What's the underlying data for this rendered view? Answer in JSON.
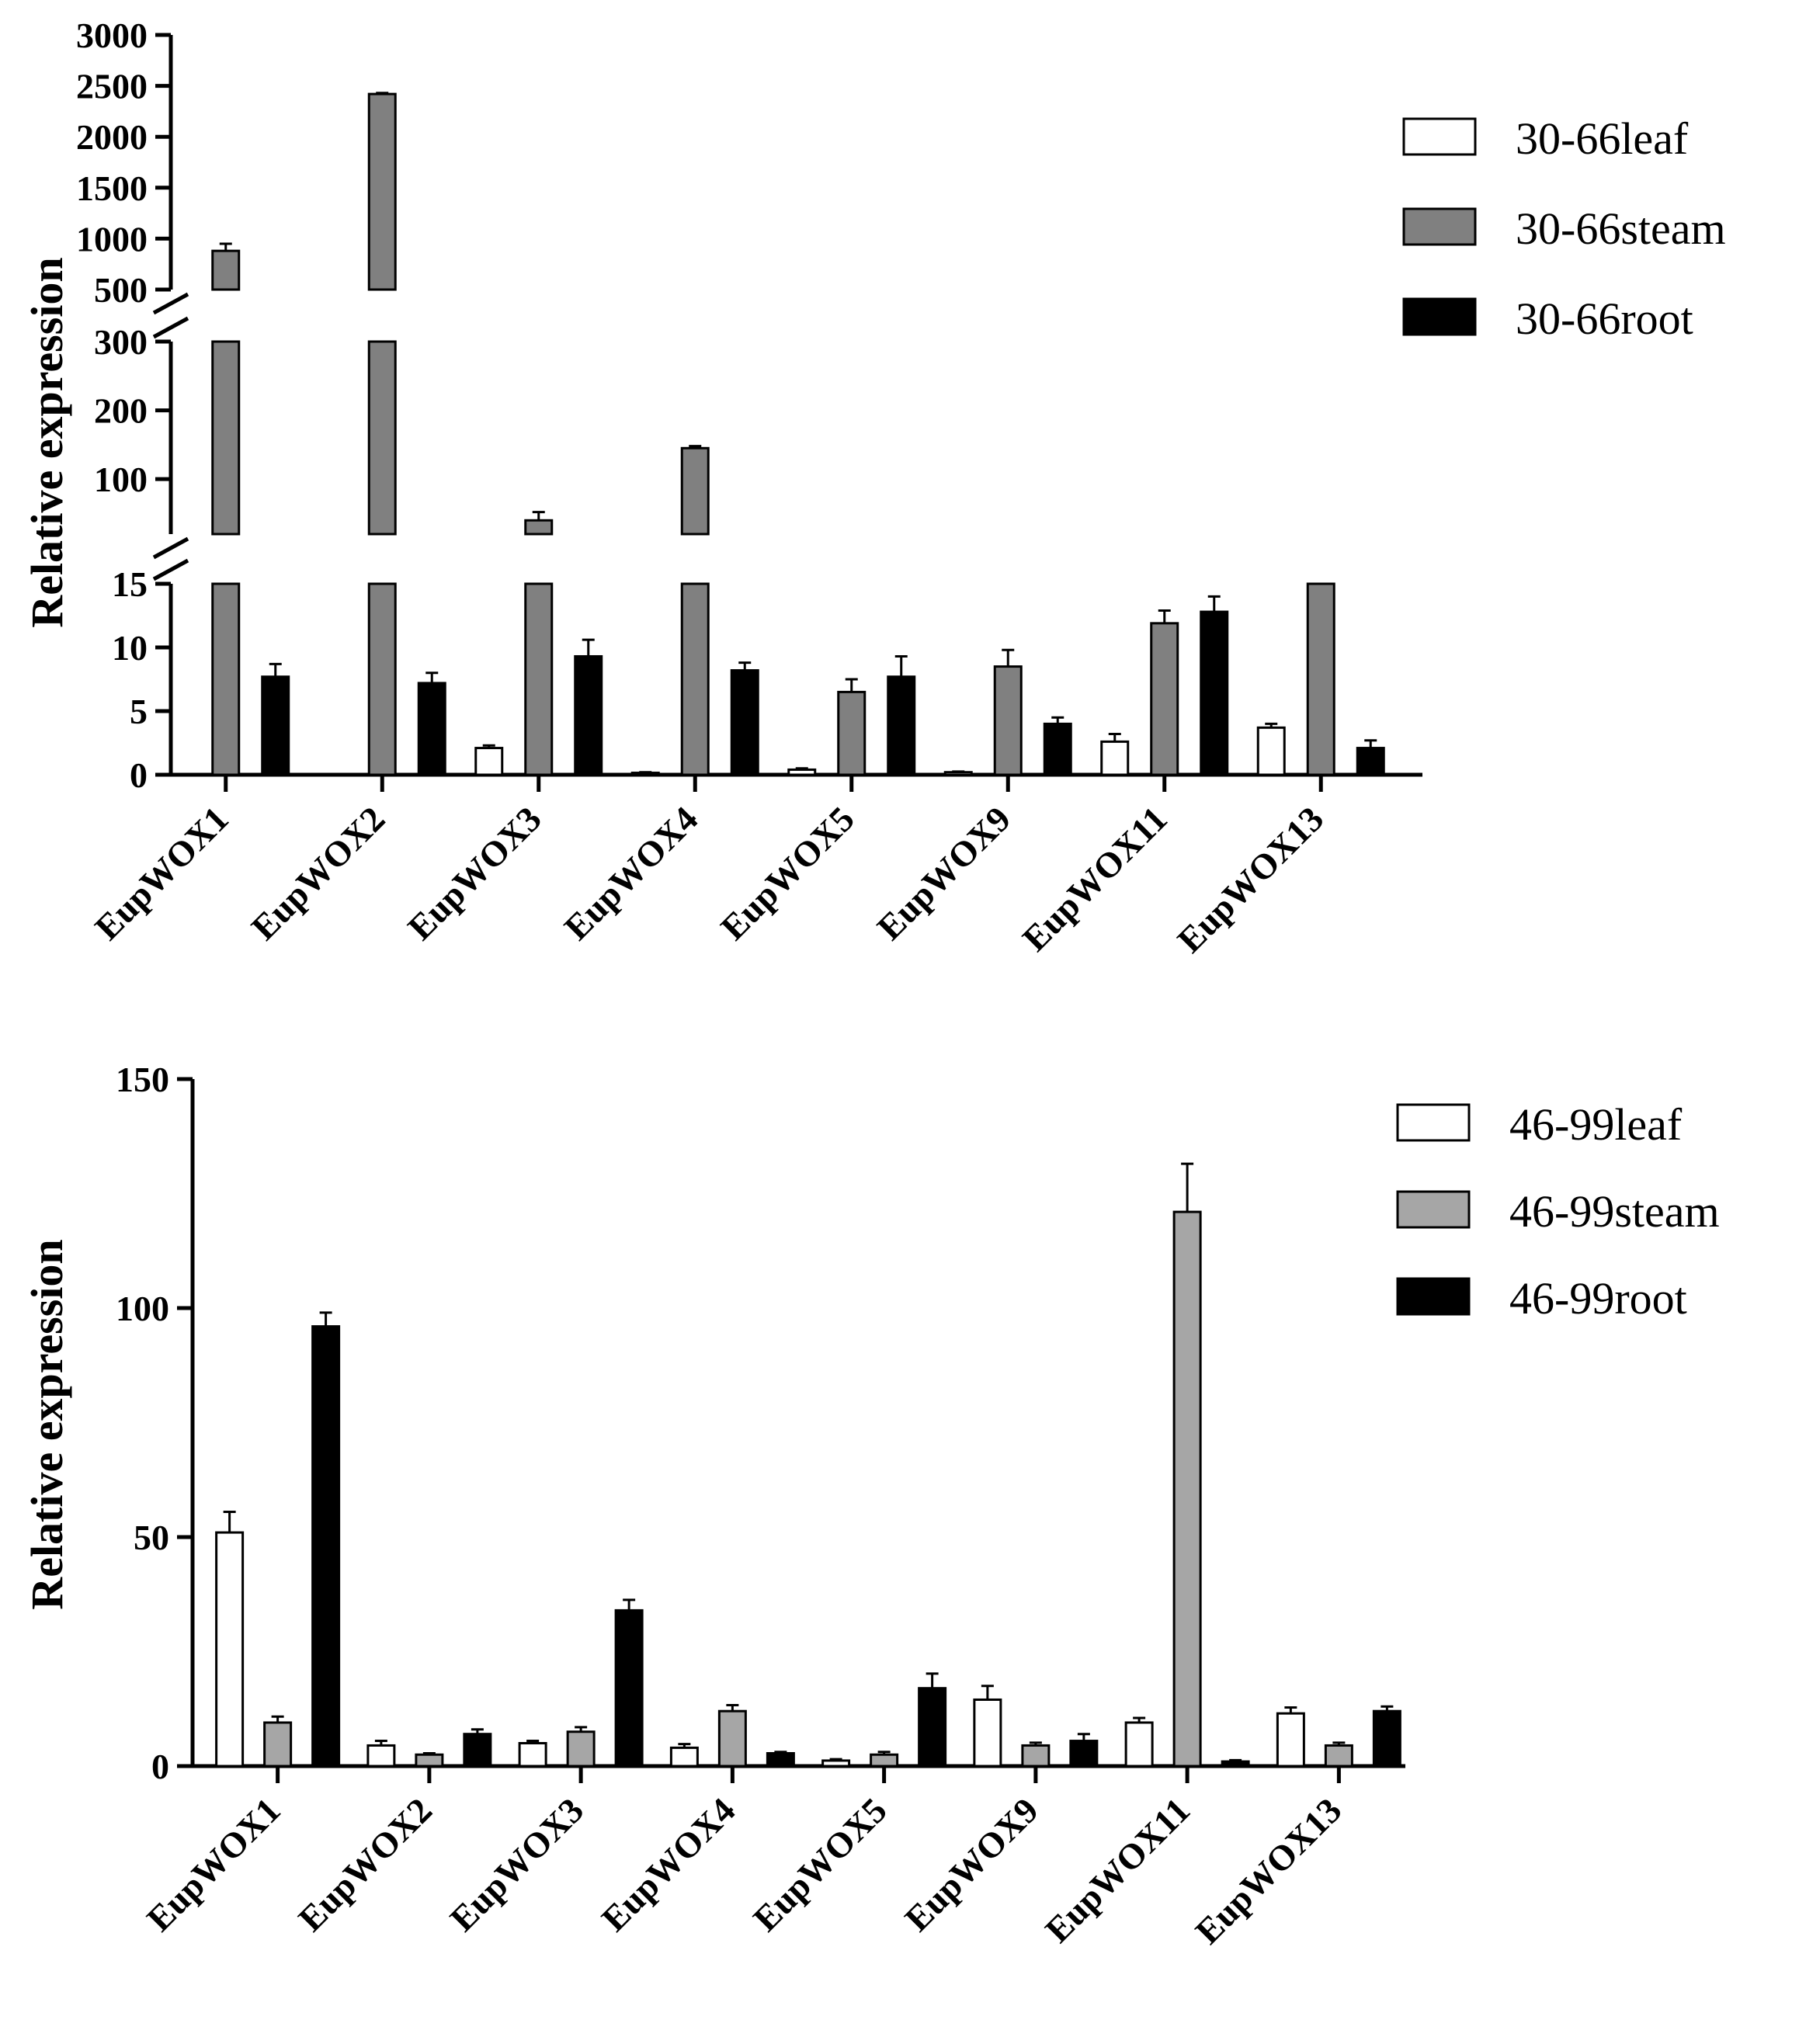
{
  "chart_data": [
    {
      "type": "bar",
      "title": "",
      "xlabel": "",
      "ylabel": "Relative expression",
      "categories": [
        "EupWOX1",
        "EupWOX2",
        "EupWOX3",
        "EupWOX4",
        "EupWOX5",
        "EupWOX9",
        "EupWOX11",
        "EupWOX13"
      ],
      "y_axis_breaks": [
        {
          "range": [
            0,
            15
          ],
          "ticks": [
            0,
            5,
            10,
            15
          ]
        },
        {
          "range": [
            20,
            300
          ],
          "ticks": [
            100,
            200,
            300
          ]
        },
        {
          "range": [
            500,
            3000
          ],
          "ticks": [
            500,
            1000,
            1500,
            2000,
            2500,
            3000
          ]
        }
      ],
      "series": [
        {
          "name": "30-66leaf",
          "color": "#ffffff",
          "values": [
            0,
            0,
            2.1,
            0.15,
            0.4,
            0.2,
            2.6,
            3.7
          ],
          "errors": [
            0,
            0,
            0.2,
            0.05,
            0.1,
            0.05,
            0.6,
            0.3
          ]
        },
        {
          "name": "30-66steam",
          "color": "#808080",
          "values": [
            880,
            2420,
            40,
            145,
            6.5,
            8.5,
            11.9,
            18
          ],
          "errors": [
            70,
            10,
            12,
            3,
            1.0,
            1.3,
            1.0,
            2
          ]
        },
        {
          "name": "30-66root",
          "color": "#000000",
          "values": [
            7.7,
            7.2,
            9.3,
            8.2,
            7.7,
            4.0,
            12.8,
            2.1
          ],
          "errors": [
            1.0,
            0.8,
            1.3,
            0.6,
            1.6,
            0.5,
            1.2,
            0.6
          ]
        }
      ]
    },
    {
      "type": "bar",
      "title": "",
      "xlabel": "",
      "ylabel": "Relative expression",
      "categories": [
        "EupWOX1",
        "EupWOX2",
        "EupWOX3",
        "EupWOX4",
        "EupWOX5",
        "EupWOX9",
        "EupWOX11",
        "EupWOX13"
      ],
      "ylim": [
        0,
        150
      ],
      "yticks": [
        0,
        50,
        100,
        150
      ],
      "series": [
        {
          "name": "46-99leaf",
          "color": "#ffffff",
          "values": [
            51,
            4.5,
            5,
            4,
            1.2,
            14.5,
            9.5,
            11.5
          ],
          "errors": [
            4.5,
            1.0,
            0.5,
            0.8,
            0.3,
            3.0,
            1.0,
            1.3
          ]
        },
        {
          "name": "46-99steam",
          "color": "#a6a6a6",
          "values": [
            9.5,
            2.5,
            7.5,
            12,
            2.5,
            4.5,
            121,
            4.5
          ],
          "errors": [
            1.3,
            0.3,
            1.0,
            1.3,
            0.6,
            0.6,
            10.5,
            0.6
          ]
        },
        {
          "name": "46-99root",
          "color": "#000000",
          "values": [
            96,
            7,
            34,
            2.8,
            17,
            5.5,
            1,
            12
          ],
          "errors": [
            3,
            1.0,
            2.3,
            0.3,
            3.2,
            1.5,
            0.3,
            1.0
          ]
        }
      ]
    }
  ]
}
